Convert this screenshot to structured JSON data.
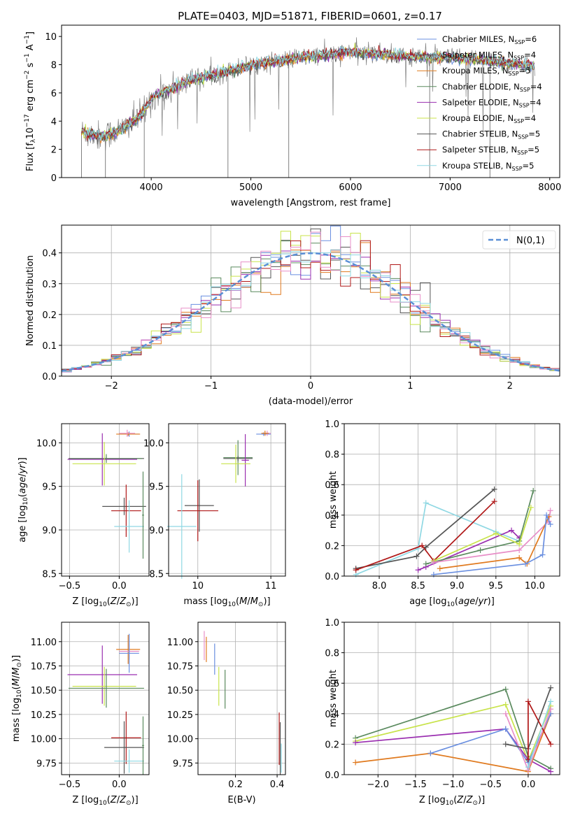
{
  "chart_data": [
    {
      "type": "line",
      "title": "PLATE=0403, MJD=51871, FIBERID=0601, z=0.17",
      "xlabel": "wavelength [Angstrom, rest frame]",
      "ylabel": "Flux [f_λ10^-17 erg cm^-2 s^-1 A^-1]",
      "xlim": [
        3100,
        8100
      ],
      "ylim": [
        0,
        10.8
      ],
      "xticks": [
        4000,
        5000,
        6000,
        7000,
        8000
      ],
      "yticks": [
        0,
        2,
        4,
        6,
        8,
        10
      ],
      "grid": false,
      "legend_position": "right",
      "spectrum_anchors": [
        [
          3300,
          3.2
        ],
        [
          3500,
          2.9
        ],
        [
          3700,
          3.4
        ],
        [
          3900,
          4.4
        ],
        [
          4000,
          5.6
        ],
        [
          4200,
          6.3
        ],
        [
          4400,
          6.9
        ],
        [
          4700,
          7.4
        ],
        [
          5000,
          8.0
        ],
        [
          5500,
          8.5
        ],
        [
          6000,
          8.9
        ],
        [
          6500,
          8.6
        ],
        [
          7000,
          8.5
        ],
        [
          7500,
          8.2
        ],
        [
          7850,
          7.9
        ]
      ],
      "series": [
        {
          "name": "Chabrier MILES",
          "nssp": "6",
          "color": "#6a8fe0",
          "x_range": [
            3300,
            7850
          ]
        },
        {
          "name": "Salpeter MILES",
          "nssp": "4",
          "color": "#555555",
          "x_range": [
            3300,
            7850
          ]
        },
        {
          "name": "Kroupa MILES",
          "nssp": "5",
          "color": "#e07a1f",
          "x_range": [
            3300,
            7850
          ]
        },
        {
          "name": "Chabrier ELODIE",
          "nssp": "4",
          "color": "#5a8a5e",
          "x_range": [
            3300,
            7850
          ]
        },
        {
          "name": "Salpeter ELODIE",
          "nssp": "4",
          "color": "#9a2eb0",
          "x_range": [
            3300,
            7850
          ]
        },
        {
          "name": "Kroupa ELODIE",
          "nssp": "4",
          "color": "#c8e34a",
          "x_range": [
            3300,
            7850
          ]
        },
        {
          "name": "Chabrier STELIB",
          "nssp": "5",
          "color": "#555555",
          "x_range": [
            3300,
            7850
          ]
        },
        {
          "name": "Salpeter STELIB",
          "nssp": "5",
          "color": "#b01818",
          "x_range": [
            3300,
            7850
          ]
        },
        {
          "name": "Kroupa STELIB",
          "nssp": "5",
          "color": "#8fd8e3",
          "x_range": [
            3300,
            7850
          ]
        }
      ],
      "data_color": "#808080"
    },
    {
      "type": "bar",
      "xlabel": "(data-model)/error",
      "ylabel": "Normed distribution",
      "xlim": [
        -2.5,
        2.5
      ],
      "ylim": [
        0,
        0.49
      ],
      "xticks": [
        -2,
        -1,
        0,
        1,
        2
      ],
      "yticks": [
        0.0,
        0.1,
        0.2,
        0.3,
        0.4
      ],
      "grid": true,
      "legend_position": "top-right",
      "bin_width": 0.1,
      "bin_start": -2.5,
      "histogram_series_colors": [
        "#6a8fe0",
        "#555555",
        "#e07a1f",
        "#5a8a5e",
        "#9a2eb0",
        "#c8e34a",
        "#b01818",
        "#e88fc8",
        "#8fd8e3"
      ],
      "reference": {
        "name": "N(0,1)",
        "color": "#5a8fd6",
        "style": "dashed"
      }
    },
    {
      "type": "scatter",
      "xlabel": "Z [log10(Z/Z⊙)]",
      "ylabel": "age [log10(age/yr)]",
      "xlim": [
        -0.58,
        0.3
      ],
      "ylim": [
        8.47,
        10.22
      ],
      "xticks": [
        -0.5,
        0.0
      ],
      "yticks": [
        8.5,
        9.0,
        9.5,
        10.0
      ],
      "grid": true,
      "points": [
        {
          "x": 0.1,
          "xerr": 0.1,
          "y": 10.1,
          "yerr": 0.03,
          "color": "#6a8fe0"
        },
        {
          "x": 0.09,
          "xerr": 0.12,
          "y": 10.1,
          "yerr": 0.02,
          "color": "#e07a1f"
        },
        {
          "x": 0.08,
          "xerr": 0.08,
          "y": 10.11,
          "yerr": 0.04,
          "color": "#e88fc8"
        },
        {
          "x": -0.13,
          "xerr": 0.38,
          "y": 9.82,
          "yerr": 0.02,
          "color": "#555555"
        },
        {
          "x": -0.13,
          "xerr": 0.36,
          "y": 9.82,
          "yerr": 0.05,
          "color": "#5a8a5e"
        },
        {
          "x": -0.17,
          "xerr": 0.35,
          "y": 9.81,
          "yerr": 0.3,
          "color": "#9a2eb0"
        },
        {
          "x": -0.15,
          "xerr": 0.32,
          "y": 9.76,
          "yerr": 0.25,
          "color": "#c8e34a"
        },
        {
          "x": 0.05,
          "xerr": 0.22,
          "y": 9.27,
          "yerr": 0.1,
          "color": "#555555"
        },
        {
          "x": 0.07,
          "xerr": 0.15,
          "y": 9.22,
          "yerr": 0.3,
          "color": "#b01818"
        },
        {
          "x": 0.1,
          "xerr": 0.15,
          "y": 9.04,
          "yerr": 0.3,
          "color": "#8fd8e3"
        },
        {
          "x": 0.24,
          "xerr": 0.01,
          "y": 9.17,
          "yerr": 0.5,
          "color": "#5a8a5e"
        }
      ]
    },
    {
      "type": "scatter",
      "xlabel": "mass [log10(M/M⊙)]",
      "ylabel": "",
      "xlim": [
        9.6,
        11.2
      ],
      "ylim": [
        8.47,
        10.22
      ],
      "xticks": [
        10,
        11
      ],
      "yticks": [
        8.5,
        9.0,
        9.5,
        10.0
      ],
      "grid": true,
      "points": [
        {
          "x": 10.9,
          "xerr": 0.1,
          "y": 10.1,
          "yerr": 0.02,
          "color": "#6a8fe0"
        },
        {
          "x": 10.95,
          "xerr": 0.05,
          "y": 10.11,
          "yerr": 0.03,
          "color": "#e88fc8"
        },
        {
          "x": 10.92,
          "xerr": 0.05,
          "y": 10.11,
          "yerr": 0.03,
          "color": "#e07a1f"
        },
        {
          "x": 10.55,
          "xerr": 0.2,
          "y": 9.83,
          "yerr": 0.2,
          "color": "#5a8a5e"
        },
        {
          "x": 10.55,
          "xerr": 0.2,
          "y": 9.82,
          "yerr": 0.03,
          "color": "#555555"
        },
        {
          "x": 10.65,
          "xerr": 0.05,
          "y": 9.8,
          "yerr": 0.3,
          "color": "#9a2eb0"
        },
        {
          "x": 10.52,
          "xerr": 0.2,
          "y": 9.76,
          "yerr": 0.22,
          "color": "#c8e34a"
        },
        {
          "x": 10.02,
          "xerr": 0.2,
          "y": 9.28,
          "yerr": 0.3,
          "color": "#555555"
        },
        {
          "x": 10.0,
          "xerr": 0.28,
          "y": 9.22,
          "yerr": 0.35,
          "color": "#b01818"
        },
        {
          "x": 9.78,
          "xerr": 0.2,
          "y": 9.04,
          "yerr": 0.6,
          "color": "#8fd8e3"
        }
      ]
    },
    {
      "type": "line",
      "xlabel": "age [log10(age/yr)]",
      "ylabel": "mass weight",
      "xlim": [
        7.55,
        10.32
      ],
      "ylim": [
        0.0,
        1.0
      ],
      "xticks": [
        8.0,
        8.5,
        9.0,
        9.5,
        10.0
      ],
      "yticks": [
        0.0,
        0.2,
        0.4,
        0.6,
        0.8,
        1.0
      ],
      "grid": true,
      "series": [
        {
          "color": "#8fd8e3",
          "x": [
            7.7,
            8.5,
            8.6,
            9.5,
            9.8
          ],
          "y": [
            0.01,
            0.18,
            0.48,
            0.29,
            0.23
          ]
        },
        {
          "color": "#555555",
          "x": [
            7.7,
            8.48,
            8.6,
            9.48
          ],
          "y": [
            0.05,
            0.13,
            0.19,
            0.57
          ]
        },
        {
          "color": "#b01818",
          "x": [
            7.7,
            8.55,
            8.7,
            9.48
          ],
          "y": [
            0.04,
            0.2,
            0.1,
            0.49
          ]
        },
        {
          "color": "#9a2eb0",
          "x": [
            8.5,
            8.6,
            9.7,
            9.8
          ],
          "y": [
            0.04,
            0.06,
            0.3,
            0.25
          ]
        },
        {
          "color": "#5a8a5e",
          "x": [
            8.6,
            9.3,
            9.8,
            9.98
          ],
          "y": [
            0.08,
            0.17,
            0.23,
            0.56
          ]
        },
        {
          "color": "#c8e34a",
          "x": [
            8.7,
            9.5,
            9.8,
            9.95
          ],
          "y": [
            0.1,
            0.28,
            0.21,
            0.45
          ]
        },
        {
          "color": "#e88fc8",
          "x": [
            8.7,
            9.8,
            10.18,
            10.2
          ],
          "y": [
            0.09,
            0.17,
            0.36,
            0.43
          ]
        },
        {
          "color": "#e07a1f",
          "x": [
            8.78,
            9.8,
            9.9,
            10.18
          ],
          "y": [
            0.05,
            0.12,
            0.08,
            0.39
          ]
        },
        {
          "color": "#6a8fe0",
          "x": [
            8.7,
            9.88,
            10.1,
            10.15,
            10.2
          ],
          "y": [
            0.01,
            0.08,
            0.14,
            0.4,
            0.34
          ]
        }
      ]
    },
    {
      "type": "scatter",
      "xlabel": "Z [log10(Z/Z⊙)]",
      "ylabel": "mass [log10(M/M⊙)]",
      "xlim": [
        -0.58,
        0.3
      ],
      "ylim": [
        9.63,
        11.2
      ],
      "xticks": [
        -0.5,
        0.0
      ],
      "yticks": [
        9.75,
        10.0,
        10.25,
        10.5,
        10.75,
        11.0
      ],
      "grid": true,
      "points": [
        {
          "x": 0.09,
          "xerr": 0.12,
          "y": 10.92,
          "yerr": 0.15,
          "color": "#e07a1f"
        },
        {
          "x": 0.1,
          "xerr": 0.1,
          "y": 10.9,
          "yerr": 0.08,
          "color": "#e88fc8"
        },
        {
          "x": 0.1,
          "xerr": 0.1,
          "y": 10.88,
          "yerr": 0.2,
          "color": "#6a8fe0"
        },
        {
          "x": -0.17,
          "xerr": 0.35,
          "y": 10.66,
          "yerr": 0.3,
          "color": "#9a2eb0"
        },
        {
          "x": -0.15,
          "xerr": 0.32,
          "y": 10.54,
          "yerr": 0.2,
          "color": "#c8e34a"
        },
        {
          "x": -0.13,
          "xerr": 0.38,
          "y": 10.52,
          "yerr": 0.2,
          "color": "#5a8a5e"
        },
        {
          "x": 0.07,
          "xerr": 0.15,
          "y": 10.01,
          "yerr": 0.27,
          "color": "#b01818"
        },
        {
          "x": 0.05,
          "xerr": 0.2,
          "y": 9.91,
          "yerr": 0.27,
          "color": "#555555"
        },
        {
          "x": 0.1,
          "xerr": 0.15,
          "y": 9.77,
          "yerr": 0.12,
          "color": "#8fd8e3"
        },
        {
          "x": 0.24,
          "xerr": 0.01,
          "y": 9.93,
          "yerr": 0.3,
          "color": "#5a8a5e"
        }
      ]
    },
    {
      "type": "scatter",
      "xlabel": "E(B-V)",
      "ylabel": "",
      "xlim": [
        0.02,
        0.44
      ],
      "ylim": [
        9.63,
        11.2
      ],
      "xticks": [
        0.2,
        0.4
      ],
      "yticks": [
        9.75,
        10.0,
        10.25,
        10.5,
        10.75,
        11.0
      ],
      "grid": true,
      "points": [
        {
          "x": 0.05,
          "y": 10.96,
          "yerr": 0.15,
          "color": "#e88fc8"
        },
        {
          "x": 0.06,
          "y": 10.92,
          "yerr": 0.13,
          "color": "#e07a1f"
        },
        {
          "x": 0.1,
          "y": 10.82,
          "yerr": 0.16,
          "color": "#6a8fe0"
        },
        {
          "x": 0.12,
          "y": 10.54,
          "yerr": 0.2,
          "color": "#c8e34a"
        },
        {
          "x": 0.15,
          "y": 10.51,
          "yerr": 0.2,
          "color": "#5a8a5e"
        },
        {
          "x": 0.41,
          "y": 10.0,
          "yerr": 0.27,
          "color": "#b01818"
        },
        {
          "x": 0.415,
          "y": 9.9,
          "yerr": 0.27,
          "color": "#555555"
        },
        {
          "x": 0.42,
          "y": 9.8,
          "yerr": 0.15,
          "color": "#8fd8e3"
        }
      ]
    },
    {
      "type": "line",
      "xlabel": "Z [log10(Z/Z⊙)]",
      "ylabel": "mass weight",
      "xlim": [
        -2.45,
        0.42
      ],
      "ylim": [
        0.0,
        1.0
      ],
      "xticks": [
        -2.0,
        -1.5,
        -1.0,
        -0.5,
        0.0
      ],
      "yticks": [
        0.0,
        0.2,
        0.4,
        0.6,
        0.8,
        1.0
      ],
      "grid": true,
      "series": [
        {
          "color": "#5a8a5e",
          "x": [
            -2.3,
            -0.3,
            0.0,
            0.3
          ],
          "y": [
            0.24,
            0.56,
            0.12,
            0.04
          ]
        },
        {
          "color": "#c8e34a",
          "x": [
            -2.3,
            -0.3,
            0.0,
            0.3
          ],
          "y": [
            0.22,
            0.46,
            0.09,
            0.45
          ]
        },
        {
          "color": "#9a2eb0",
          "x": [
            -2.3,
            -0.3,
            0.0,
            0.3
          ],
          "y": [
            0.21,
            0.3,
            0.1,
            0.02
          ]
        },
        {
          "color": "#e07a1f",
          "x": [
            -2.3,
            -1.3,
            0.0,
            0.3
          ],
          "y": [
            0.08,
            0.14,
            0.02,
            0.4
          ]
        },
        {
          "color": "#6a8fe0",
          "x": [
            -1.3,
            -0.3,
            0.0,
            0.3
          ],
          "y": [
            0.14,
            0.3,
            0.08,
            0.4
          ]
        },
        {
          "color": "#e88fc8",
          "x": [
            -0.3,
            0.0,
            0.3
          ],
          "y": [
            0.4,
            0.03,
            0.43
          ]
        },
        {
          "color": "#555555",
          "x": [
            -0.3,
            0.0,
            0.3
          ],
          "y": [
            0.2,
            0.17,
            0.57
          ]
        },
        {
          "color": "#b01818",
          "x": [
            0.0,
            0.0,
            0.3
          ],
          "y": [
            0.1,
            0.48,
            0.2
          ]
        },
        {
          "color": "#8fd8e3",
          "x": [
            0.0,
            0.3
          ],
          "y": [
            0.05,
            0.48
          ]
        }
      ]
    }
  ]
}
